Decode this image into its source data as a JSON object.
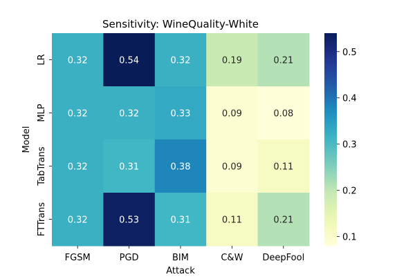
{
  "chart_data": {
    "type": "heatmap",
    "title": "Sensitivity: WineQuality-White",
    "xlabel": "Attack",
    "ylabel": "Model",
    "x_categories": [
      "FGSM",
      "PGD",
      "BIM",
      "C&W",
      "DeepFool"
    ],
    "y_categories": [
      "LR",
      "MLP",
      "TabTrans",
      "FTTrans"
    ],
    "values": [
      [
        0.32,
        0.54,
        0.32,
        0.19,
        0.21
      ],
      [
        0.32,
        0.32,
        0.33,
        0.09,
        0.08
      ],
      [
        0.32,
        0.31,
        0.38,
        0.09,
        0.11
      ],
      [
        0.32,
        0.53,
        0.31,
        0.11,
        0.21
      ]
    ],
    "value_labels": [
      [
        "0.32",
        "0.54",
        "0.32",
        "0.19",
        "0.21"
      ],
      [
        "0.32",
        "0.32",
        "0.33",
        "0.09",
        "0.08"
      ],
      [
        "0.32",
        "0.31",
        "0.38",
        "0.09",
        "0.11"
      ],
      [
        "0.32",
        "0.53",
        "0.31",
        "0.11",
        "0.21"
      ]
    ],
    "colormap": "YlGnBu",
    "vmin": 0.08,
    "vmax": 0.54,
    "colorbar_ticks": [
      0.1,
      0.2,
      0.3,
      0.4,
      0.5
    ],
    "colorbar_tick_labels": [
      "0.1",
      "0.2",
      "0.3",
      "0.4",
      "0.5"
    ],
    "colorbar_position": "right"
  }
}
